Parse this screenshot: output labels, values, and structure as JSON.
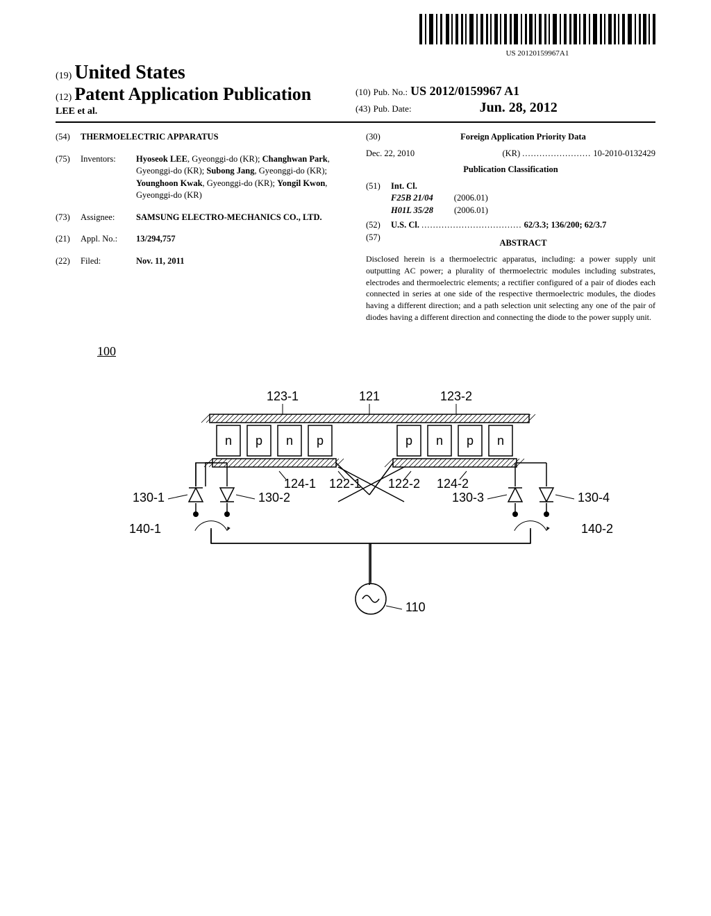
{
  "barcode_text": "US 20120159967A1",
  "header": {
    "country_code": "(19)",
    "country": "United States",
    "doctype_code": "(12)",
    "doctype": "Patent Application Publication",
    "authors_short": "LEE et al.",
    "pubno_code": "(10)",
    "pubno_label": "Pub. No.:",
    "pubno": "US 2012/0159967 A1",
    "pubdate_code": "(43)",
    "pubdate_label": "Pub. Date:",
    "pubdate": "Jun. 28, 2012"
  },
  "title": {
    "code": "(54)",
    "text": "THERMOELECTRIC APPARATUS"
  },
  "inventors": {
    "code": "(75)",
    "label": "Inventors:",
    "list": [
      {
        "name": "Hyoseok LEE",
        "loc": "Gyeonggi-do (KR)"
      },
      {
        "name": "Changhwan Park",
        "loc": "Gyeonggi-do (KR)"
      },
      {
        "name": "Subong Jang",
        "loc": "Gyeonggi-do (KR)"
      },
      {
        "name": "Younghoon Kwak",
        "loc": "Gyeonggi-do (KR)"
      },
      {
        "name": "Yongil Kwon",
        "loc": "Gyeonggi-do (KR)"
      }
    ]
  },
  "assignee": {
    "code": "(73)",
    "label": "Assignee:",
    "text": "SAMSUNG ELECTRO-MECHANICS CO., LTD."
  },
  "applno": {
    "code": "(21)",
    "label": "Appl. No.:",
    "text": "13/294,757"
  },
  "filed": {
    "code": "(22)",
    "label": "Filed:",
    "text": "Nov. 11, 2011"
  },
  "foreign_priority": {
    "code": "(30)",
    "heading": "Foreign Application Priority Data",
    "date": "Dec. 22, 2010",
    "country": "(KR)",
    "number": "10-2010-0132429"
  },
  "pub_classification": {
    "heading": "Publication Classification",
    "intcl": {
      "code": "(51)",
      "label": "Int. Cl.",
      "rows": [
        {
          "code": "F25B 21/04",
          "year": "(2006.01)"
        },
        {
          "code": "H01L 35/28",
          "year": "(2006.01)"
        }
      ]
    },
    "uscl": {
      "code": "(52)",
      "label": "U.S. Cl.",
      "codes": "62/3.3; 136/200; 62/3.7"
    }
  },
  "abstract": {
    "code": "(57)",
    "heading": "ABSTRACT",
    "text": "Disclosed herein is a thermoelectric apparatus, including: a power supply unit outputting AC power; a plurality of thermoelectric modules including substrates, electrodes and thermoelectric elements; a rectifier configured of a pair of diodes each connected in series at one side of the respective thermoelectric modules, the diodes having a different direction; and a path selection unit selecting any one of the pair of diodes having a different direction and connecting the diode to the power supply unit."
  },
  "figure": {
    "ref_number": "100",
    "labels": {
      "l123_1": "123-1",
      "l121": "121",
      "l123_2": "123-2",
      "l124_1": "124-1",
      "l122_1": "122-1",
      "l122_2": "122-2",
      "l124_2": "124-2",
      "l130_1": "130-1",
      "l130_2": "130-2",
      "l130_3": "130-3",
      "l130_4": "130-4",
      "l140_1": "140-1",
      "l140_2": "140-2",
      "l110": "110"
    },
    "elements_left": [
      "n",
      "p",
      "n",
      "p"
    ],
    "elements_right": [
      "p",
      "n",
      "p",
      "n"
    ],
    "style": {
      "text_color": "#000000",
      "stroke": "#000000",
      "fill": "#ffffff",
      "hatch_stroke": "#000000",
      "font_size_labels": 18,
      "font_size_small": 16,
      "line_width": 1.5
    }
  }
}
